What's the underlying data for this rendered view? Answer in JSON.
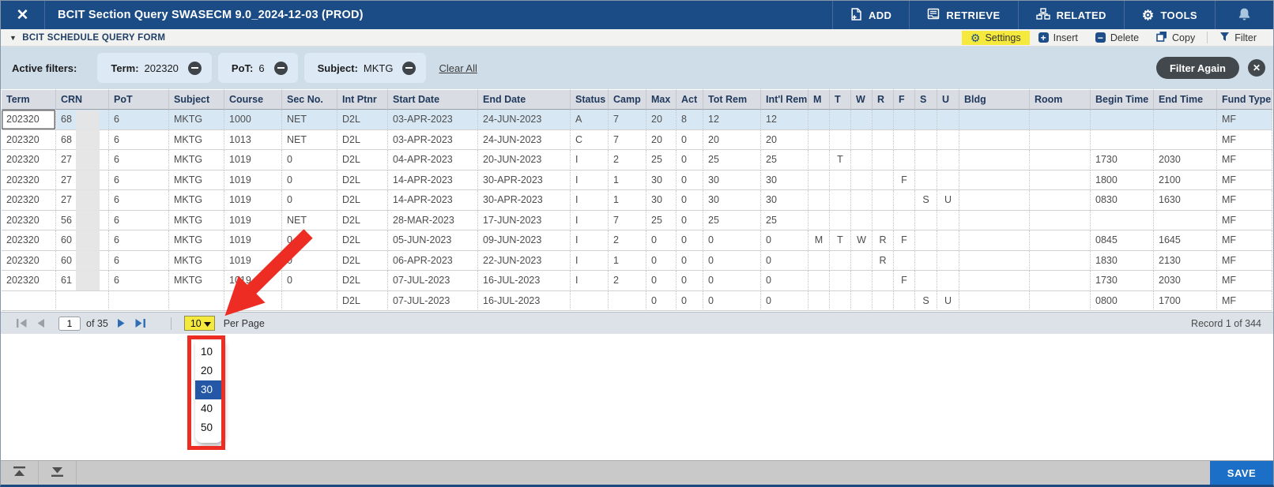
{
  "window": {
    "title": "BCIT Section Query SWASECM 9.0_2024-12-03 (PROD)"
  },
  "navbar": {
    "buttons": [
      {
        "label": "ADD",
        "icon": "add-document-icon"
      },
      {
        "label": "RETRIEVE",
        "icon": "retrieve-document-icon"
      },
      {
        "label": "RELATED",
        "icon": "sitemap-icon"
      },
      {
        "label": "TOOLS",
        "icon": "gear-icon"
      }
    ]
  },
  "toolbar": {
    "form_title": "BCIT SCHEDULE QUERY FORM",
    "items": [
      {
        "label": "Settings",
        "icon": "gear-icon",
        "highlight": true
      },
      {
        "label": "Insert",
        "icon": "plus-square-icon"
      },
      {
        "label": "Delete",
        "icon": "minus-square-icon"
      },
      {
        "label": "Copy",
        "icon": "copy-icon"
      },
      {
        "label": "Filter",
        "icon": "funnel-icon"
      }
    ]
  },
  "filters": {
    "label": "Active filters:",
    "chips": [
      {
        "name": "Term",
        "value": "202320"
      },
      {
        "name": "PoT",
        "value": "6"
      },
      {
        "name": "Subject",
        "value": "MKTG"
      }
    ],
    "clear_all": "Clear All",
    "filter_again": "Filter Again"
  },
  "table": {
    "columns": [
      "Term",
      "CRN",
      "PoT",
      "Subject",
      "Course",
      "Sec No.",
      "Int Ptnr",
      "Start Date",
      "End Date",
      "Status",
      "Camp",
      "Max",
      "Act",
      "Tot Rem",
      "Int'l Rem",
      "M",
      "T",
      "W",
      "R",
      "F",
      "S",
      "U",
      "Bldg",
      "Room",
      "Begin Time",
      "End Time",
      "Fund Type"
    ],
    "rows": [
      [
        "202320",
        "68",
        "6",
        "MKTG",
        "1000",
        "NET",
        "D2L",
        "03-APR-2023",
        "24-JUN-2023",
        "A",
        "7",
        "20",
        "8",
        "12",
        "12",
        "",
        "",
        "",
        "",
        "",
        "",
        "",
        "",
        "",
        "",
        "",
        "MF"
      ],
      [
        "202320",
        "68",
        "6",
        "MKTG",
        "1013",
        "NET",
        "D2L",
        "03-APR-2023",
        "24-JUN-2023",
        "C",
        "7",
        "20",
        "0",
        "20",
        "20",
        "",
        "",
        "",
        "",
        "",
        "",
        "",
        "",
        "",
        "",
        "",
        "MF"
      ],
      [
        "202320",
        "27",
        "6",
        "MKTG",
        "1019",
        "0",
        "D2L",
        "04-APR-2023",
        "20-JUN-2023",
        "I",
        "2",
        "25",
        "0",
        "25",
        "25",
        "",
        "T",
        "",
        "",
        "",
        "",
        "",
        "",
        "",
        "1730",
        "2030",
        "MF"
      ],
      [
        "202320",
        "27",
        "6",
        "MKTG",
        "1019",
        "0",
        "D2L",
        "14-APR-2023",
        "30-APR-2023",
        "I",
        "1",
        "30",
        "0",
        "30",
        "30",
        "",
        "",
        "",
        "",
        "F",
        "",
        "",
        "",
        "",
        "1800",
        "2100",
        "MF"
      ],
      [
        "202320",
        "27",
        "6",
        "MKTG",
        "1019",
        "0",
        "D2L",
        "14-APR-2023",
        "30-APR-2023",
        "I",
        "1",
        "30",
        "0",
        "30",
        "30",
        "",
        "",
        "",
        "",
        "",
        "S",
        "U",
        "",
        "",
        "0830",
        "1630",
        "MF"
      ],
      [
        "202320",
        "56",
        "6",
        "MKTG",
        "1019",
        "NET",
        "D2L",
        "28-MAR-2023",
        "17-JUN-2023",
        "I",
        "7",
        "25",
        "0",
        "25",
        "25",
        "",
        "",
        "",
        "",
        "",
        "",
        "",
        "",
        "",
        "",
        "",
        "MF"
      ],
      [
        "202320",
        "60",
        "6",
        "MKTG",
        "1019",
        "0",
        "D2L",
        "05-JUN-2023",
        "09-JUN-2023",
        "I",
        "2",
        "0",
        "0",
        "0",
        "0",
        "M",
        "T",
        "W",
        "R",
        "F",
        "",
        "",
        "",
        "",
        "0845",
        "1645",
        "MF"
      ],
      [
        "202320",
        "60",
        "6",
        "MKTG",
        "1019",
        "0",
        "D2L",
        "06-APR-2023",
        "22-JUN-2023",
        "I",
        "1",
        "0",
        "0",
        "0",
        "0",
        "",
        "",
        "",
        "R",
        "",
        "",
        "",
        "",
        "",
        "1830",
        "2130",
        "MF"
      ],
      [
        "202320",
        "61",
        "6",
        "MKTG",
        "1019",
        "0",
        "D2L",
        "07-JUL-2023",
        "16-JUL-2023",
        "I",
        "2",
        "0",
        "0",
        "0",
        "0",
        "",
        "",
        "",
        "",
        "F",
        "",
        "",
        "",
        "",
        "1730",
        "2030",
        "MF"
      ],
      [
        "",
        "",
        "",
        "",
        "",
        "",
        "D2L",
        "07-JUL-2023",
        "16-JUL-2023",
        "",
        "",
        "0",
        "0",
        "0",
        "0",
        "",
        "",
        "",
        "",
        "",
        "S",
        "U",
        "",
        "",
        "0800",
        "1700",
        "MF"
      ]
    ],
    "selected_row_index": 0
  },
  "pagination": {
    "page": "1",
    "of_label": "of 35",
    "per_page_value": "10",
    "per_page_label": "Per Page",
    "record_label": "Record 1 of 344"
  },
  "dropdown": {
    "options": [
      "10",
      "20",
      "30",
      "40",
      "50"
    ],
    "selected": "30"
  },
  "footer": {
    "save_label": "SAVE"
  },
  "colors": {
    "navbar": "#1c4c85",
    "settings_highlight": "#f5e93d",
    "selected_row": "#d8e7f4",
    "annotation_red": "#ed2d24",
    "save_button": "#1b6fc6",
    "dropdown_selected": "#2457a5"
  }
}
